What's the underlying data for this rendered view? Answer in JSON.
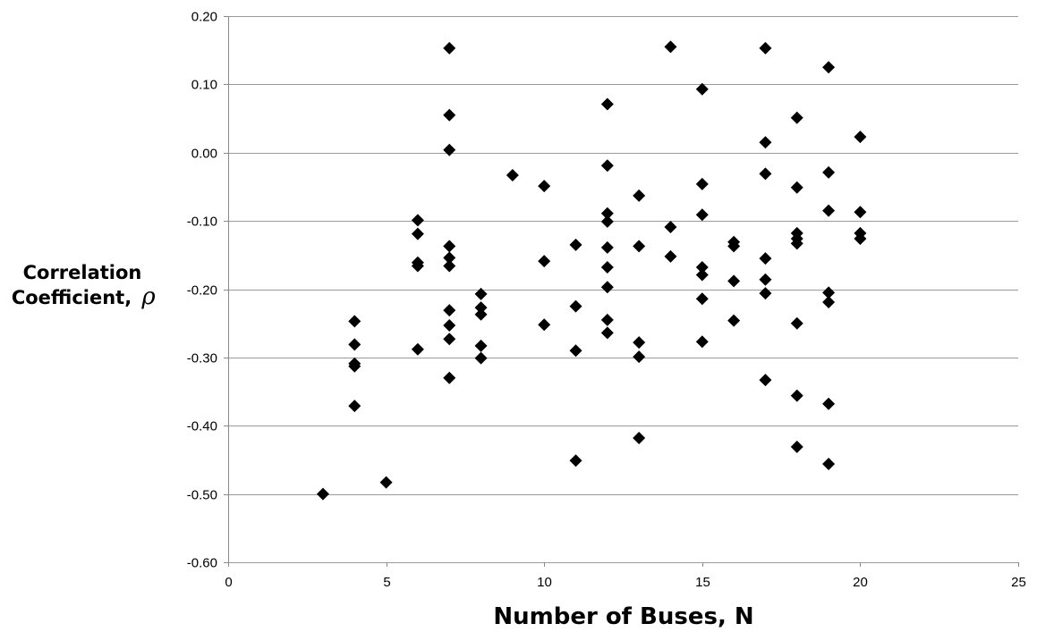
{
  "chart_data": {
    "type": "scatter",
    "title": "",
    "xlabel": "Number of Buses, N",
    "ylabel_line1": "Correlation",
    "ylabel_line2": "Coefficient,",
    "ylabel_symbol": "ρ",
    "xlim": [
      0,
      25
    ],
    "ylim": [
      -0.6,
      0.2
    ],
    "x_ticks": [
      0,
      5,
      10,
      15,
      20,
      25
    ],
    "x_tick_labels": [
      "0",
      "5",
      "10",
      "15",
      "20",
      "25"
    ],
    "y_ticks": [
      0.2,
      0.1,
      0.0,
      -0.1,
      -0.2,
      -0.3,
      -0.4,
      -0.5,
      -0.6
    ],
    "y_tick_labels": [
      "0.20",
      "0.10",
      "0.00",
      "-0.10",
      "-0.20",
      "-0.30",
      "-0.40",
      "-0.50",
      "-0.60"
    ],
    "grid": "horizontal",
    "marker": "diamond",
    "marker_color": "#000000",
    "points": [
      {
        "x": 3,
        "y": -0.5
      },
      {
        "x": 4,
        "y": -0.247
      },
      {
        "x": 4,
        "y": -0.281
      },
      {
        "x": 4,
        "y": -0.309
      },
      {
        "x": 4,
        "y": -0.313
      },
      {
        "x": 4,
        "y": -0.371
      },
      {
        "x": 5,
        "y": -0.483
      },
      {
        "x": 6,
        "y": -0.099
      },
      {
        "x": 6,
        "y": -0.119
      },
      {
        "x": 6,
        "y": -0.161
      },
      {
        "x": 6,
        "y": -0.166
      },
      {
        "x": 6,
        "y": -0.288
      },
      {
        "x": 7,
        "y": 0.153
      },
      {
        "x": 7,
        "y": 0.055
      },
      {
        "x": 7,
        "y": 0.004
      },
      {
        "x": 7,
        "y": -0.137
      },
      {
        "x": 7,
        "y": -0.154
      },
      {
        "x": 7,
        "y": -0.166
      },
      {
        "x": 7,
        "y": -0.231
      },
      {
        "x": 7,
        "y": -0.253
      },
      {
        "x": 7,
        "y": -0.273
      },
      {
        "x": 7,
        "y": -0.33
      },
      {
        "x": 8,
        "y": -0.207
      },
      {
        "x": 8,
        "y": -0.227
      },
      {
        "x": 8,
        "y": -0.237
      },
      {
        "x": 8,
        "y": -0.283
      },
      {
        "x": 8,
        "y": -0.301
      },
      {
        "x": 9,
        "y": -0.033
      },
      {
        "x": 10,
        "y": -0.049
      },
      {
        "x": 10,
        "y": -0.159
      },
      {
        "x": 10,
        "y": -0.252
      },
      {
        "x": 11,
        "y": -0.135
      },
      {
        "x": 11,
        "y": -0.225
      },
      {
        "x": 11,
        "y": -0.29
      },
      {
        "x": 11,
        "y": -0.451
      },
      {
        "x": 12,
        "y": 0.071
      },
      {
        "x": 12,
        "y": -0.019
      },
      {
        "x": 12,
        "y": -0.089
      },
      {
        "x": 12,
        "y": -0.101
      },
      {
        "x": 12,
        "y": -0.139
      },
      {
        "x": 12,
        "y": -0.168
      },
      {
        "x": 12,
        "y": -0.197
      },
      {
        "x": 12,
        "y": -0.245
      },
      {
        "x": 12,
        "y": -0.264
      },
      {
        "x": 13,
        "y": -0.063
      },
      {
        "x": 13,
        "y": -0.137
      },
      {
        "x": 13,
        "y": -0.278
      },
      {
        "x": 13,
        "y": -0.299
      },
      {
        "x": 13,
        "y": -0.418
      },
      {
        "x": 14,
        "y": 0.155
      },
      {
        "x": 14,
        "y": -0.109
      },
      {
        "x": 14,
        "y": -0.152
      },
      {
        "x": 15,
        "y": 0.093
      },
      {
        "x": 15,
        "y": -0.046
      },
      {
        "x": 15,
        "y": -0.091
      },
      {
        "x": 15,
        "y": -0.168
      },
      {
        "x": 15,
        "y": -0.179
      },
      {
        "x": 15,
        "y": -0.214
      },
      {
        "x": 15,
        "y": -0.277
      },
      {
        "x": 16,
        "y": -0.131
      },
      {
        "x": 16,
        "y": -0.137
      },
      {
        "x": 16,
        "y": -0.188
      },
      {
        "x": 16,
        "y": -0.246
      },
      {
        "x": 17,
        "y": 0.153
      },
      {
        "x": 17,
        "y": 0.015
      },
      {
        "x": 17,
        "y": -0.031
      },
      {
        "x": 17,
        "y": -0.155
      },
      {
        "x": 17,
        "y": -0.186
      },
      {
        "x": 17,
        "y": -0.206
      },
      {
        "x": 17,
        "y": -0.333
      },
      {
        "x": 18,
        "y": 0.051
      },
      {
        "x": 18,
        "y": -0.051
      },
      {
        "x": 18,
        "y": -0.118
      },
      {
        "x": 18,
        "y": -0.126
      },
      {
        "x": 18,
        "y": -0.133
      },
      {
        "x": 18,
        "y": -0.25
      },
      {
        "x": 18,
        "y": -0.356
      },
      {
        "x": 18,
        "y": -0.431
      },
      {
        "x": 19,
        "y": 0.125
      },
      {
        "x": 19,
        "y": -0.029
      },
      {
        "x": 19,
        "y": -0.085
      },
      {
        "x": 19,
        "y": -0.205
      },
      {
        "x": 19,
        "y": -0.219
      },
      {
        "x": 19,
        "y": -0.368
      },
      {
        "x": 19,
        "y": -0.456
      },
      {
        "x": 20,
        "y": 0.023
      },
      {
        "x": 20,
        "y": -0.087
      },
      {
        "x": 20,
        "y": -0.118
      },
      {
        "x": 20,
        "y": -0.126
      }
    ]
  }
}
